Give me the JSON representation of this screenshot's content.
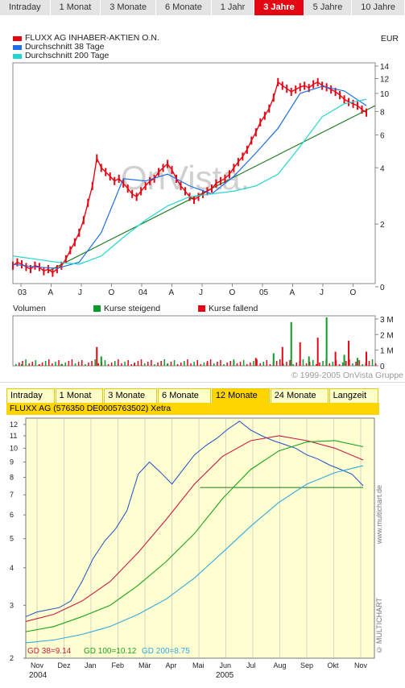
{
  "top_tabs": [
    "Intraday",
    "1 Monat",
    "3 Monate",
    "6 Monate",
    "1 Jahr",
    "3 Jahre",
    "5 Jahre",
    "10 Jahre"
  ],
  "top_tabs_active": 5,
  "legend": {
    "items": [
      {
        "label": "FLUXX AG INHABER-AKTIEN O.N.",
        "color": "#e30613"
      },
      {
        "label": "Durchschnitt 38 Tage",
        "color": "#1e6ee6"
      },
      {
        "label": "Durchschnitt 200 Tage",
        "color": "#21d6d0"
      }
    ],
    "currency": "EUR"
  },
  "volume_legend": {
    "volumen": "Volumen",
    "steigend": "Kurse steigend",
    "fallend": "Kurse fallend",
    "steigend_color": "#0a9a2a",
    "fallend_color": "#e30613"
  },
  "watermark": "OnVista.",
  "copyright_top": "© 1999-2005 OnVista Gruppe",
  "bottom_tabs": [
    "Intraday",
    "1 Monat",
    "3 Monate",
    "6 Monate",
    "12 Monate",
    "24 Monate",
    "Langzeit"
  ],
  "bottom_tabs_active": 4,
  "bottom_title": "FLUXX AG (576350 DE0005763502) Xetra",
  "mc_copyright": "© MULTICHART",
  "mc_url": "www.multichart.de",
  "chart_data": [
    {
      "type": "line",
      "log_scale": true,
      "y_ticks": [
        0,
        2,
        4,
        6,
        8,
        10,
        12,
        14
      ],
      "x_labels": [
        "03",
        "A",
        "J",
        "O",
        "04",
        "A",
        "J",
        "O",
        "05",
        "A",
        "J",
        "O"
      ],
      "series": [
        {
          "name": "FLUXX AG INHABER-AKTIEN O.N.",
          "color": "#e30613",
          "x": [
            0,
            2,
            4,
            6,
            8,
            10,
            12,
            14,
            16,
            18,
            20,
            22,
            24,
            26,
            28,
            30,
            32,
            34,
            36,
            38,
            40,
            42,
            44,
            46,
            48,
            50,
            52,
            54,
            56,
            58,
            60,
            62,
            64,
            66,
            68,
            70,
            72,
            74,
            76,
            78,
            80,
            82,
            84,
            86,
            88,
            90,
            92,
            94,
            96,
            98,
            100,
            102,
            104,
            106,
            108,
            110,
            112,
            114,
            116,
            118,
            120,
            122,
            124,
            126,
            128,
            130,
            132,
            134,
            136,
            138,
            140,
            142,
            144,
            146,
            148,
            150,
            152,
            154,
            156,
            158,
            160
          ],
          "y": [
            1.2,
            1.25,
            1.22,
            1.18,
            1.15,
            1.2,
            1.18,
            1.12,
            1.15,
            1.1,
            1.15,
            1.2,
            1.3,
            1.45,
            1.6,
            1.8,
            2.1,
            2.6,
            3.2,
            4.5,
            4.0,
            3.8,
            3.6,
            3.4,
            3.5,
            3.3,
            3.1,
            2.9,
            2.8,
            3.0,
            3.2,
            3.4,
            3.5,
            3.8,
            4.0,
            4.2,
            3.9,
            3.5,
            3.2,
            3.0,
            2.8,
            2.7,
            2.8,
            2.9,
            3.0,
            3.1,
            3.3,
            3.4,
            3.5,
            3.7,
            4.0,
            4.3,
            4.6,
            5.0,
            5.6,
            6.2,
            7.0,
            7.6,
            8.3,
            9.5,
            11.5,
            11.0,
            10.6,
            10.2,
            10.5,
            10.8,
            11.0,
            10.7,
            11.2,
            11.5,
            11.0,
            10.8,
            10.5,
            10.2,
            9.8,
            9.3,
            9.0,
            8.8,
            8.6,
            8.2,
            7.9
          ]
        },
        {
          "name": "Durchschnitt 38 Tage",
          "color": "#1e6ee6",
          "x": [
            0,
            10,
            20,
            30,
            40,
            50,
            60,
            70,
            80,
            90,
            100,
            110,
            120,
            130,
            140,
            150,
            160
          ],
          "y": [
            1.22,
            1.18,
            1.16,
            1.25,
            1.8,
            3.5,
            3.4,
            3.7,
            3.2,
            2.9,
            3.6,
            4.8,
            6.5,
            10.0,
            10.9,
            10.3,
            8.6
          ]
        },
        {
          "name": "Durchschnitt 200 Tage",
          "color": "#21d6d0",
          "x": [
            0,
            10,
            20,
            30,
            40,
            50,
            60,
            70,
            80,
            90,
            100,
            110,
            120,
            130,
            140,
            150,
            160
          ],
          "y": [
            1.35,
            1.3,
            1.25,
            1.22,
            1.35,
            1.7,
            2.1,
            2.5,
            2.8,
            2.9,
            3.0,
            3.2,
            3.7,
            5.2,
            7.5,
            8.8,
            9.3
          ]
        }
      ],
      "trendline": {
        "color": "#1a7a1a",
        "from": [
          16,
          1.12
        ],
        "to": [
          164,
          8.6
        ]
      }
    },
    {
      "type": "bar",
      "y_ticks": [
        "3 M",
        "2 M",
        "1 M",
        "0"
      ],
      "x": [
        4,
        12,
        22,
        38,
        40,
        55,
        70,
        88,
        100,
        110,
        118,
        122,
        126,
        130,
        134,
        138,
        142,
        146,
        150,
        152,
        156,
        160
      ],
      "values": [
        0.1,
        0.08,
        0.12,
        1.2,
        0.6,
        0.15,
        0.12,
        0.2,
        0.3,
        0.5,
        0.8,
        1.2,
        2.8,
        1.5,
        0.6,
        1.8,
        3.1,
        0.9,
        0.7,
        1.6,
        0.5,
        0.9
      ],
      "rising_color": "#0a9a2a",
      "falling_color": "#e30613"
    },
    {
      "type": "line",
      "log_scale": true,
      "y_ticks": [
        2,
        3,
        4,
        5,
        6,
        7,
        8,
        9,
        10,
        11,
        12
      ],
      "x_labels": [
        "Nov",
        "Dez",
        "Jan",
        "Feb",
        "Mär",
        "Apr",
        "Mai",
        "Jun",
        "Jul",
        "Aug",
        "Sep",
        "Okt",
        "Nov"
      ],
      "x_sublabels": [
        "2004",
        "2005"
      ],
      "series": [
        {
          "name": "Kurs",
          "color": "#1e50c8",
          "x": [
            0,
            4,
            8,
            12,
            16,
            20,
            24,
            28,
            32,
            36,
            40,
            44,
            48,
            52,
            56,
            60,
            64,
            68,
            72,
            76,
            80,
            84,
            88,
            92,
            96,
            100,
            104,
            108,
            112,
            116,
            120
          ],
          "y": [
            2.75,
            2.85,
            2.9,
            2.95,
            3.1,
            3.6,
            4.3,
            4.9,
            5.4,
            6.2,
            8.2,
            9.0,
            8.3,
            7.6,
            8.5,
            9.5,
            10.2,
            10.8,
            11.6,
            12.3,
            11.5,
            11.0,
            10.6,
            10.3,
            10.0,
            9.5,
            9.2,
            8.8,
            8.5,
            8.2,
            7.5
          ]
        },
        {
          "name": "GD 38",
          "color": "#cc1a44",
          "label": "GD 38=9.14",
          "x": [
            0,
            10,
            20,
            30,
            40,
            50,
            60,
            70,
            80,
            90,
            100,
            110,
            120
          ],
          "y": [
            2.65,
            2.8,
            3.1,
            3.6,
            4.5,
            5.8,
            7.6,
            9.4,
            10.6,
            11.0,
            10.6,
            10.0,
            9.14
          ]
        },
        {
          "name": "GD 100",
          "color": "#1aa31a",
          "label": "GD 100=10.12",
          "x": [
            0,
            10,
            20,
            30,
            40,
            50,
            60,
            70,
            80,
            90,
            100,
            110,
            120
          ],
          "y": [
            2.45,
            2.55,
            2.75,
            3.0,
            3.5,
            4.2,
            5.2,
            6.8,
            8.5,
            9.8,
            10.5,
            10.6,
            10.12
          ]
        },
        {
          "name": "GD 200",
          "color": "#30a8e0",
          "label": "GD 200=8.75",
          "x": [
            0,
            10,
            20,
            30,
            40,
            50,
            60,
            70,
            80,
            90,
            100,
            110,
            120
          ],
          "y": [
            2.25,
            2.3,
            2.4,
            2.55,
            2.8,
            3.15,
            3.7,
            4.5,
            5.5,
            6.6,
            7.6,
            8.3,
            8.75
          ]
        }
      ],
      "support_line": {
        "color": "#1a7a1a",
        "y": 7.4,
        "from": 62,
        "to": 120
      }
    }
  ]
}
